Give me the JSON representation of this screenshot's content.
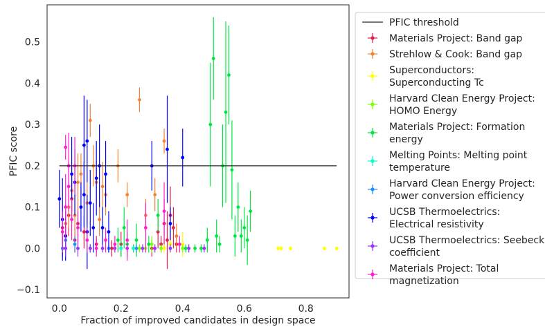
{
  "chart_data": {
    "type": "scatter",
    "title": "",
    "xlabel": "Fraction of improved candidates in design space",
    "ylabel": "PFIC score",
    "xlim": [
      -0.04,
      0.94
    ],
    "ylim": [
      -0.12,
      0.59
    ],
    "x_ticks": [
      0.0,
      0.2,
      0.4,
      0.6,
      0.8
    ],
    "x_tick_labels": [
      "0.0",
      "0.2",
      "0.4",
      "0.6",
      "0.8"
    ],
    "y_ticks": [
      -0.1,
      0.0,
      0.1,
      0.2,
      0.3,
      0.4,
      0.5
    ],
    "y_tick_labels": [
      "−0.1",
      "0.0",
      "0.1",
      "0.2",
      "0.3",
      "0.4",
      "0.5"
    ],
    "grid": false,
    "legend_position": "outside-right",
    "threshold": {
      "name": "PFIC threshold",
      "y": 0.2,
      "x_range": [
        0.0,
        0.9
      ],
      "color": "#262626"
    },
    "series": [
      {
        "name": "Materials Project: Band gap",
        "legend_lines": [
          "Materials Project: Band gap"
        ],
        "color": "#e6194b",
        "points": [
          [
            0.01,
            0.05,
            0.04
          ],
          [
            0.02,
            0.03,
            0.03
          ],
          [
            0.03,
            0.08,
            0.05
          ],
          [
            0.04,
            0.12,
            0.06
          ],
          [
            0.05,
            0.02,
            0.03
          ],
          [
            0.06,
            0.06,
            0.04
          ],
          [
            0.08,
            0.04,
            0.04
          ],
          [
            0.12,
            0.01,
            0.02
          ],
          [
            0.17,
            0.0,
            0.02
          ],
          [
            0.2,
            0.01,
            0.03
          ],
          [
            0.3,
            0.0,
            0.02
          ],
          [
            0.32,
            0.04,
            0.04
          ],
          [
            0.33,
            0.01,
            0.02
          ],
          [
            0.34,
            0.06,
            0.06
          ],
          [
            0.35,
            0.02,
            0.07
          ],
          [
            0.36,
            0.08,
            0.07
          ],
          [
            0.37,
            0.05,
            0.05
          ],
          [
            0.38,
            0.01,
            0.02
          ]
        ]
      },
      {
        "name": "Strehlow & Cook: Band gap",
        "legend_lines": [
          "Strehlow & Cook: Band gap"
        ],
        "color": "#f58231",
        "points": [
          [
            0.02,
            0.06,
            0.04
          ],
          [
            0.03,
            0.1,
            0.05
          ],
          [
            0.04,
            0.14,
            0.06
          ],
          [
            0.05,
            0.08,
            0.05
          ],
          [
            0.06,
            0.16,
            0.07
          ],
          [
            0.07,
            0.18,
            0.05
          ],
          [
            0.09,
            0.11,
            0.05
          ],
          [
            0.1,
            0.31,
            0.04
          ],
          [
            0.11,
            0.2,
            0.05
          ],
          [
            0.12,
            0.16,
            0.05
          ],
          [
            0.13,
            0.07,
            0.04
          ],
          [
            0.14,
            0.15,
            0.06
          ],
          [
            0.15,
            0.13,
            0.05
          ],
          [
            0.19,
            0.2,
            0.04
          ],
          [
            0.22,
            0.13,
            0.03
          ],
          [
            0.26,
            0.36,
            0.03
          ],
          [
            0.28,
            0.08,
            0.04
          ],
          [
            0.31,
            0.13,
            0.04
          ],
          [
            0.34,
            0.26,
            0.03
          ],
          [
            0.38,
            0.03,
            0.03
          ]
        ]
      },
      {
        "name": "Superconductors: Superconducting Tc",
        "legend_lines": [
          "Superconductors:",
          "Superconducting Tc"
        ],
        "color": "#ffff00",
        "points": [
          [
            0.34,
            0.0,
            0.01
          ],
          [
            0.36,
            0.01,
            0.02
          ],
          [
            0.4,
            0.01,
            0.03
          ],
          [
            0.71,
            0.0,
            0.005
          ],
          [
            0.72,
            0.0,
            0.005
          ],
          [
            0.75,
            0.0,
            0.005
          ],
          [
            0.86,
            0.0,
            0.005
          ],
          [
            0.9,
            0.0,
            0.005
          ]
        ]
      },
      {
        "name": "Harvard Clean Energy Project: HOMO Energy",
        "legend_lines": [
          "Harvard Clean Energy Project:",
          "HOMO Energy"
        ],
        "color": "#7fff00",
        "points": [
          [
            0.26,
            0.0,
            0.01
          ],
          [
            0.28,
            0.0,
            0.01
          ],
          [
            0.3,
            0.01,
            0.02
          ],
          [
            0.33,
            0.0,
            0.01
          ],
          [
            0.4,
            0.0,
            0.01
          ]
        ]
      },
      {
        "name": "Materials Project: Formation energy",
        "legend_lines": [
          "Materials Project: Formation",
          "energy"
        ],
        "color": "#00e640",
        "points": [
          [
            0.19,
            0.02,
            0.03
          ],
          [
            0.2,
            0.0,
            0.02
          ],
          [
            0.21,
            0.05,
            0.05
          ],
          [
            0.22,
            0.01,
            0.03
          ],
          [
            0.24,
            0.0,
            0.01
          ],
          [
            0.25,
            0.02,
            0.04
          ],
          [
            0.29,
            0.01,
            0.02
          ],
          [
            0.32,
            0.08,
            0.04
          ],
          [
            0.41,
            0.0,
            0.01
          ],
          [
            0.44,
            0.0,
            0.01
          ],
          [
            0.46,
            0.0,
            0.01
          ],
          [
            0.48,
            0.02,
            0.03
          ],
          [
            0.49,
            0.3,
            0.15
          ],
          [
            0.5,
            0.46,
            0.1
          ],
          [
            0.51,
            0.03,
            0.04
          ],
          [
            0.52,
            0.01,
            0.02
          ],
          [
            0.53,
            0.2,
            0.1
          ],
          [
            0.54,
            0.33,
            0.22
          ],
          [
            0.55,
            0.42,
            0.12
          ],
          [
            0.56,
            0.19,
            0.12
          ],
          [
            0.57,
            0.03,
            0.05
          ],
          [
            0.58,
            0.1,
            0.06
          ],
          [
            0.59,
            0.03,
            0.04
          ],
          [
            0.6,
            0.05,
            0.05
          ],
          [
            0.61,
            0.02,
            0.06
          ],
          [
            0.62,
            0.09,
            0.05
          ]
        ]
      },
      {
        "name": "Melting Points: Melting point temperature",
        "legend_lines": [
          "Melting Points: Melting point",
          "temperature"
        ],
        "color": "#00ffcc",
        "points": [
          [
            0.2,
            0.0,
            0.005
          ],
          [
            0.24,
            0.0,
            0.005
          ]
        ]
      },
      {
        "name": "Harvard Clean Energy Project: Power conversion efficiency",
        "legend_lines": [
          "Harvard Clean Energy Project:",
          "Power conversion efficiency"
        ],
        "color": "#1e90ff",
        "points": [
          [
            0.01,
            0.0,
            0.02
          ],
          [
            0.02,
            0.02,
            0.03
          ],
          [
            0.05,
            0.01,
            0.02
          ],
          [
            0.1,
            0.0,
            0.01
          ],
          [
            0.16,
            0.0,
            0.01
          ],
          [
            0.25,
            0.0,
            0.01
          ]
        ]
      },
      {
        "name": "UCSB Thermoelectrics: Electrical resistivity",
        "legend_lines": [
          "UCSB Thermoelectrics:",
          "Electrical resistivity"
        ],
        "color": "#0000ff",
        "points": [
          [
            0.0,
            0.12,
            0.07
          ],
          [
            0.01,
            0.07,
            0.1
          ],
          [
            0.02,
            0.03,
            0.06
          ],
          [
            0.04,
            0.18,
            0.09
          ],
          [
            0.05,
            0.16,
            0.08
          ],
          [
            0.07,
            0.1,
            0.06
          ],
          [
            0.08,
            0.13,
            0.08
          ],
          [
            0.08,
            0.25,
            0.12
          ],
          [
            0.09,
            0.04,
            0.09
          ],
          [
            0.09,
            0.26,
            0.1
          ],
          [
            0.1,
            0.11,
            0.08
          ],
          [
            0.11,
            0.05,
            0.06
          ],
          [
            0.12,
            0.17,
            0.09
          ],
          [
            0.13,
            0.2,
            0.1
          ],
          [
            0.14,
            0.05,
            0.05
          ],
          [
            0.15,
            0.18,
            0.08
          ],
          [
            0.16,
            0.04,
            0.05
          ],
          [
            0.3,
            0.2,
            0.06
          ],
          [
            0.35,
            0.24,
            0.13
          ],
          [
            0.36,
            0.06,
            0.04
          ],
          [
            0.4,
            0.22,
            0.07
          ]
        ]
      },
      {
        "name": "UCSB Thermoelectrics: Seebeck coefficient",
        "legend_lines": [
          "UCSB Thermoelectrics: Seebeck",
          "coefficient"
        ],
        "color": "#9b30ff",
        "points": [
          [
            0.02,
            0.0,
            0.02
          ],
          [
            0.06,
            0.0,
            0.02
          ],
          [
            0.1,
            0.0,
            0.01
          ],
          [
            0.14,
            0.0,
            0.01
          ],
          [
            0.18,
            0.0,
            0.01
          ],
          [
            0.22,
            0.0,
            0.01
          ],
          [
            0.27,
            0.0,
            0.01
          ],
          [
            0.31,
            0.0,
            0.01
          ],
          [
            0.36,
            0.0,
            0.01
          ],
          [
            0.42,
            0.0,
            0.01
          ],
          [
            0.47,
            0.0,
            0.01
          ]
        ]
      },
      {
        "name": "Materials Project: Total magnetization",
        "legend_lines": [
          "Materials Project: Total",
          "magnetization"
        ],
        "color": "#ff1dce",
        "points": [
          [
            0.01,
            0.04,
            0.05
          ],
          [
            0.02,
            0.245,
            0.03
          ],
          [
            0.02,
            0.1,
            0.08
          ],
          [
            0.03,
            0.2,
            0.08
          ],
          [
            0.03,
            0.15,
            0.06
          ],
          [
            0.04,
            0.07,
            0.05
          ],
          [
            0.05,
            0.2,
            0.07
          ],
          [
            0.06,
            0.05,
            0.04
          ],
          [
            0.09,
            0.02,
            0.03
          ],
          [
            0.12,
            0.0,
            0.02
          ],
          [
            0.15,
            0.02,
            0.03
          ],
          [
            0.18,
            0.01,
            0.02
          ],
          [
            0.22,
            0.02,
            0.05
          ],
          [
            0.28,
            0.05,
            0.06
          ],
          [
            0.34,
            0.09,
            0.07
          ],
          [
            0.39,
            0.01,
            0.02
          ]
        ]
      }
    ]
  }
}
